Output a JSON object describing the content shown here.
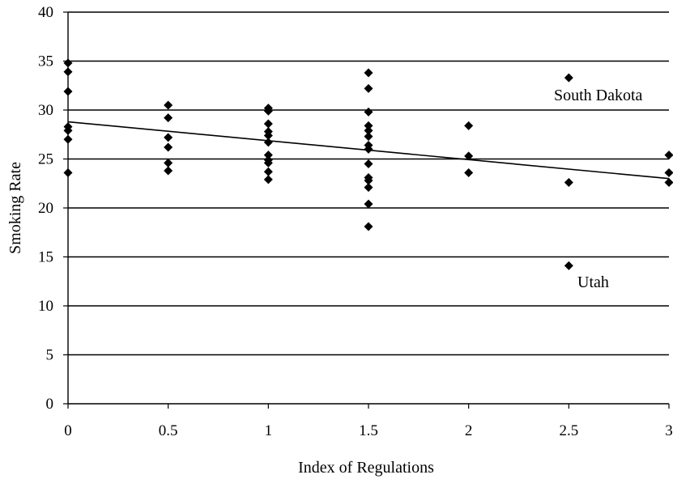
{
  "chart_data": {
    "type": "scatter",
    "title": "",
    "xlabel": "Index of Regulations",
    "ylabel": "Smoking Rate",
    "xlim": [
      0,
      3
    ],
    "ylim": [
      0,
      40
    ],
    "x_ticks": [
      0,
      0.5,
      1,
      1.5,
      2,
      2.5,
      3
    ],
    "x_tick_labels": [
      "0",
      "0.5",
      "1",
      "1.5",
      "2",
      "2.5",
      "3"
    ],
    "y_ticks": [
      0,
      5,
      10,
      15,
      20,
      25,
      30,
      35,
      40
    ],
    "y_tick_labels": [
      "0",
      "5",
      "10",
      "15",
      "20",
      "25",
      "30",
      "35",
      "40"
    ],
    "grid": "horizontal",
    "legend": "none",
    "marker": "diamond",
    "marker_color": "#000000",
    "series": [
      {
        "points": [
          {
            "x": 0,
            "y": 34.8
          },
          {
            "x": 0,
            "y": 33.9
          },
          {
            "x": 0,
            "y": 31.9
          },
          {
            "x": 0,
            "y": 28.3
          },
          {
            "x": 0,
            "y": 27.9
          },
          {
            "x": 0,
            "y": 27.0
          },
          {
            "x": 0,
            "y": 23.6
          },
          {
            "x": 0.5,
            "y": 30.5
          },
          {
            "x": 0.5,
            "y": 29.2
          },
          {
            "x": 0.5,
            "y": 27.2
          },
          {
            "x": 0.5,
            "y": 26.2
          },
          {
            "x": 0.5,
            "y": 24.6
          },
          {
            "x": 0.5,
            "y": 23.8
          },
          {
            "x": 1,
            "y": 30.2
          },
          {
            "x": 1,
            "y": 29.9
          },
          {
            "x": 1,
            "y": 28.6
          },
          {
            "x": 1,
            "y": 27.8
          },
          {
            "x": 1,
            "y": 27.4
          },
          {
            "x": 1,
            "y": 26.7
          },
          {
            "x": 1,
            "y": 25.4
          },
          {
            "x": 1,
            "y": 24.9
          },
          {
            "x": 1,
            "y": 24.6
          },
          {
            "x": 1,
            "y": 23.7
          },
          {
            "x": 1,
            "y": 22.9
          },
          {
            "x": 1.5,
            "y": 33.8
          },
          {
            "x": 1.5,
            "y": 32.2
          },
          {
            "x": 1.5,
            "y": 29.8
          },
          {
            "x": 1.5,
            "y": 28.4
          },
          {
            "x": 1.5,
            "y": 27.9
          },
          {
            "x": 1.5,
            "y": 27.3
          },
          {
            "x": 1.5,
            "y": 26.4
          },
          {
            "x": 1.5,
            "y": 26.0
          },
          {
            "x": 1.5,
            "y": 24.5
          },
          {
            "x": 1.5,
            "y": 23.1
          },
          {
            "x": 1.5,
            "y": 22.8
          },
          {
            "x": 1.5,
            "y": 22.1
          },
          {
            "x": 1.5,
            "y": 20.4
          },
          {
            "x": 1.5,
            "y": 18.1
          },
          {
            "x": 2,
            "y": 28.4
          },
          {
            "x": 2,
            "y": 25.3
          },
          {
            "x": 2,
            "y": 23.6
          },
          {
            "x": 2.5,
            "y": 33.3
          },
          {
            "x": 2.5,
            "y": 22.6
          },
          {
            "x": 2.5,
            "y": 14.1
          },
          {
            "x": 3,
            "y": 25.4
          },
          {
            "x": 3,
            "y": 23.6
          },
          {
            "x": 3,
            "y": 22.6
          }
        ]
      }
    ],
    "trendline": {
      "x": [
        0,
        3
      ],
      "y": [
        28.8,
        23.0
      ]
    },
    "annotations": [
      {
        "text": "South Dakota",
        "x": 2.5,
        "y": 33.3
      },
      {
        "text": "Utah",
        "x": 2.5,
        "y": 14.1
      }
    ]
  }
}
